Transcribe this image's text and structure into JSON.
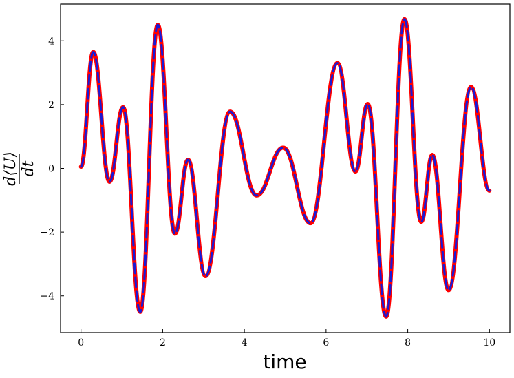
{
  "chart_data": {
    "type": "line",
    "title": "",
    "xlabel": "time",
    "ylabel": "d⟨U⟩/dt",
    "ylabel_parts": {
      "numerator": "d⟨U⟩",
      "denominator": "dt"
    },
    "xlim": [
      -0.5,
      10.5
    ],
    "ylim": [
      -5.15,
      5.15
    ],
    "xticks": [
      0,
      2,
      4,
      6,
      8,
      10
    ],
    "xtick_labels": [
      "0",
      "2",
      "4",
      "6",
      "8",
      "10"
    ],
    "yticks": [
      -4,
      -2,
      0,
      2,
      4
    ],
    "ytick_labels": [
      "−4",
      "−2",
      "0",
      "2",
      "4"
    ],
    "grid": false,
    "legend": "none",
    "series": [
      {
        "style": "solid",
        "color": "#ff0000",
        "x": [
          0,
          0.3,
          0.7,
          1.03,
          1.45,
          1.88,
          2.3,
          2.62,
          3.05,
          3.65,
          4.3,
          4.95,
          5.62,
          6.28,
          6.72,
          7.02,
          7.47,
          7.92,
          8.33,
          8.6,
          9.0,
          9.55,
          10.0
        ],
        "y": [
          0.05,
          3.65,
          -0.42,
          1.92,
          -4.5,
          4.5,
          -2.05,
          0.27,
          -3.38,
          1.78,
          -0.85,
          0.65,
          -1.72,
          3.3,
          -0.1,
          2.02,
          -4.65,
          4.68,
          -1.68,
          0.42,
          -3.82,
          2.55,
          -0.7
        ]
      },
      {
        "style": "dashed",
        "color": "#1a1ad6",
        "x": [
          0,
          0.3,
          0.7,
          1.03,
          1.45,
          1.88,
          2.3,
          2.62,
          3.05,
          3.65,
          4.3,
          4.95,
          5.62,
          6.28,
          6.72,
          7.02,
          7.47,
          7.92,
          8.33,
          8.6,
          9.0,
          9.55,
          10.0
        ],
        "y": [
          0.05,
          3.65,
          -0.42,
          1.92,
          -4.5,
          4.5,
          -2.05,
          0.27,
          -3.38,
          1.78,
          -0.85,
          0.65,
          -1.72,
          3.3,
          -0.1,
          2.02,
          -4.65,
          4.68,
          -1.68,
          0.42,
          -3.82,
          2.55,
          -0.7
        ]
      }
    ]
  }
}
